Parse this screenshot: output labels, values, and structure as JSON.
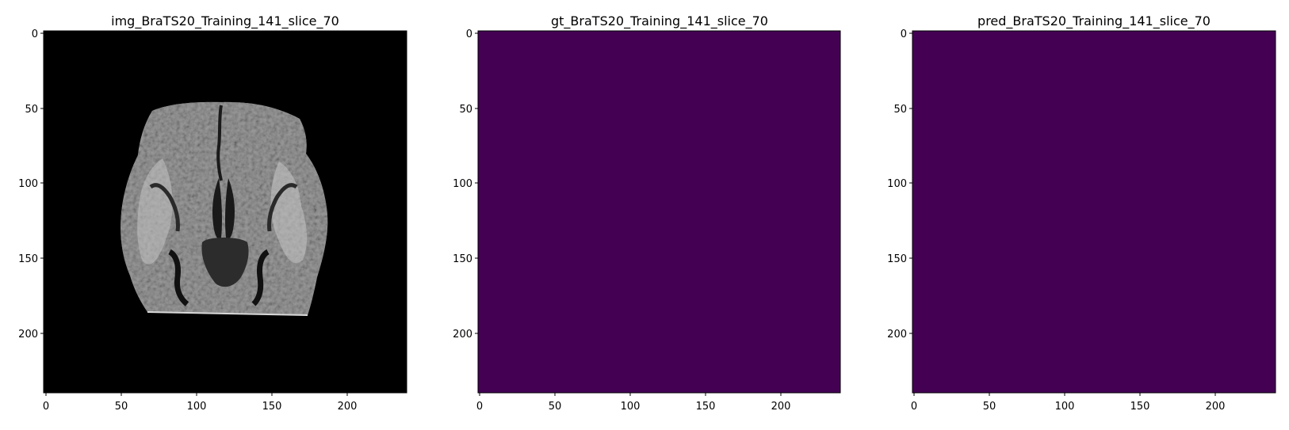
{
  "figure": {
    "background": "#ffffff",
    "panels": [
      {
        "title": "img_BraTS20_Training_141_slice_70",
        "kind": "mri-slice",
        "background_color": "#000000",
        "x_ticks": [
          "0",
          "50",
          "100",
          "150",
          "200"
        ],
        "y_ticks": [
          "0",
          "50",
          "100",
          "150",
          "200"
        ]
      },
      {
        "title": "gt_BraTS20_Training_141_slice_70",
        "kind": "mask",
        "fill_color": "#440154",
        "x_ticks": [
          "0",
          "50",
          "100",
          "150",
          "200"
        ],
        "y_ticks": [
          "0",
          "50",
          "100",
          "150",
          "200"
        ]
      },
      {
        "title": "pred_BraTS20_Training_141_slice_70",
        "kind": "mask",
        "fill_color": "#440154",
        "x_ticks": [
          "0",
          "50",
          "100",
          "150",
          "200"
        ],
        "y_ticks": [
          "0",
          "50",
          "100",
          "150",
          "200"
        ]
      }
    ]
  }
}
